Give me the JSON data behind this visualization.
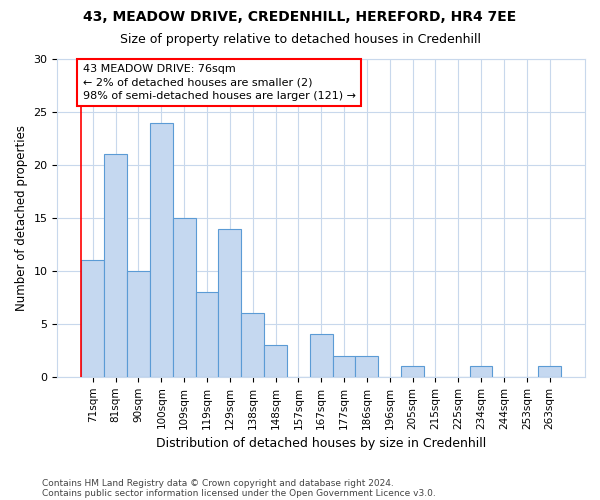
{
  "title1": "43, MEADOW DRIVE, CREDENHILL, HEREFORD, HR4 7EE",
  "title2": "Size of property relative to detached houses in Credenhill",
  "xlabel": "Distribution of detached houses by size in Credenhill",
  "ylabel": "Number of detached properties",
  "categories": [
    "71sqm",
    "81sqm",
    "90sqm",
    "100sqm",
    "109sqm",
    "119sqm",
    "129sqm",
    "138sqm",
    "148sqm",
    "157sqm",
    "167sqm",
    "177sqm",
    "186sqm",
    "196sqm",
    "205sqm",
    "215sqm",
    "225sqm",
    "234sqm",
    "244sqm",
    "253sqm",
    "263sqm"
  ],
  "values": [
    11,
    21,
    10,
    24,
    15,
    8,
    14,
    6,
    3,
    0,
    4,
    2,
    2,
    0,
    1,
    0,
    0,
    1,
    0,
    0,
    1
  ],
  "bar_color": "#c5d8f0",
  "bar_edge_color": "#5b9bd5",
  "bar_width": 1.0,
  "ylim": [
    0,
    30
  ],
  "yticks": [
    0,
    5,
    10,
    15,
    20,
    25,
    30
  ],
  "annotation_box_text": "43 MEADOW DRIVE: 76sqm\n← 2% of detached houses are smaller (2)\n98% of semi-detached houses are larger (121) →",
  "footer1": "Contains HM Land Registry data © Crown copyright and database right 2024.",
  "footer2": "Contains public sector information licensed under the Open Government Licence v3.0.",
  "background_color": "#ffffff",
  "plot_bg_color": "#ffffff",
  "grid_color": "#c8d8ec"
}
